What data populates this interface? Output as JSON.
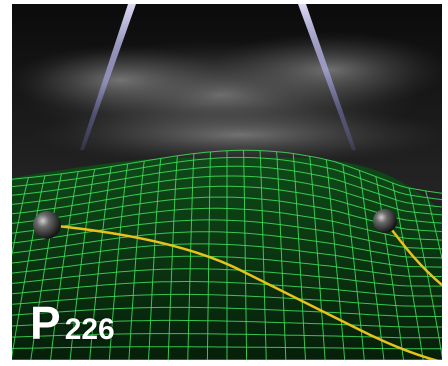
{
  "label": {
    "letter": "P",
    "number": "226"
  },
  "colors": {
    "frame": "#ffffff",
    "sky_dark": "#0b0b0b",
    "cloud": "#6f6f6f",
    "grid_line": "#3ee05a",
    "surface_dark": "#0a3010",
    "trajectory": "#e8c21a",
    "beam": "#c9c6ff",
    "sphere": "#3a3a3a",
    "label_text": "#ffffff"
  }
}
